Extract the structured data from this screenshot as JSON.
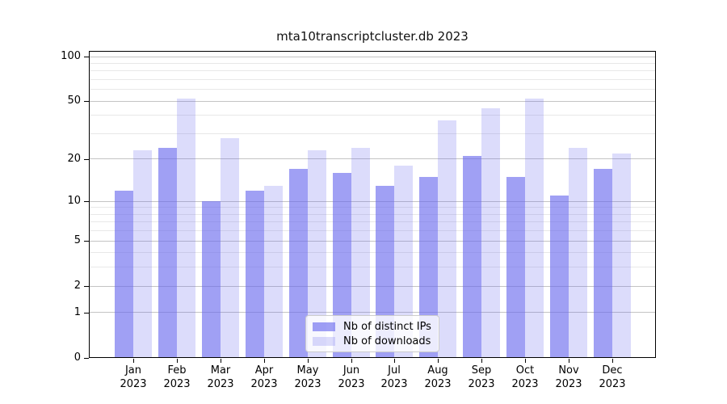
{
  "title": "mta10transcriptcluster.db 2023",
  "chart_data": {
    "type": "bar",
    "title": "mta10transcriptcluster.db 2023",
    "categories": [
      "Jan 2023",
      "Feb 2023",
      "Mar 2023",
      "Apr 2023",
      "May 2023",
      "Jun 2023",
      "Jul 2023",
      "Aug 2023",
      "Sep 2023",
      "Oct 2023",
      "Nov 2023",
      "Dec 2023"
    ],
    "x_tick_line1": [
      "Jan",
      "Feb",
      "Mar",
      "Apr",
      "May",
      "Jun",
      "Jul",
      "Aug",
      "Sep",
      "Oct",
      "Nov",
      "Dec"
    ],
    "x_tick_line2": "2023",
    "series": [
      {
        "name": "Nb of distinct IPs",
        "values": [
          12,
          24,
          10,
          12,
          17,
          16,
          13,
          15,
          21,
          15,
          11,
          17
        ],
        "base_color": "#6666ee",
        "alpha": 0.62,
        "rendered_fill": "#a0a0f4"
      },
      {
        "name": "Nb of downloads",
        "values": [
          23,
          52,
          28,
          13,
          23,
          24,
          18,
          37,
          45,
          52,
          24,
          22
        ],
        "base_color": "#6666ee",
        "alpha": 0.23,
        "rendered_fill": "#dbdbf8"
      }
    ],
    "y_scale": "log10(value+1)",
    "y_tick_values": [
      100,
      50,
      20,
      10,
      5,
      2,
      1,
      0
    ],
    "y_tick_labels": [
      "100",
      "50",
      "20",
      "10",
      "5",
      "2",
      "1",
      "0"
    ],
    "y_minor_gridlines": [
      90,
      80,
      70,
      60,
      40,
      30,
      9,
      8,
      7,
      6,
      4,
      3
    ],
    "ylim": [
      0,
      107
    ],
    "grid": "horizontal",
    "legend_position": "lower center"
  },
  "legend": {
    "items": [
      {
        "label": "Nb of distinct IPs",
        "swatch": "distinct-ips"
      },
      {
        "label": "Nb of downloads",
        "swatch": "downloads"
      }
    ]
  },
  "colors": {
    "bar_base": "#6666ee",
    "distinct_ips_fill": "#a0a0f4",
    "downloads_fill": "#dbdbf8",
    "grid_major": "#c4c4c4",
    "grid_minor": "#e8e8e8",
    "axis": "#000000",
    "background": "#ffffff",
    "legend_border": "#cccccc"
  }
}
